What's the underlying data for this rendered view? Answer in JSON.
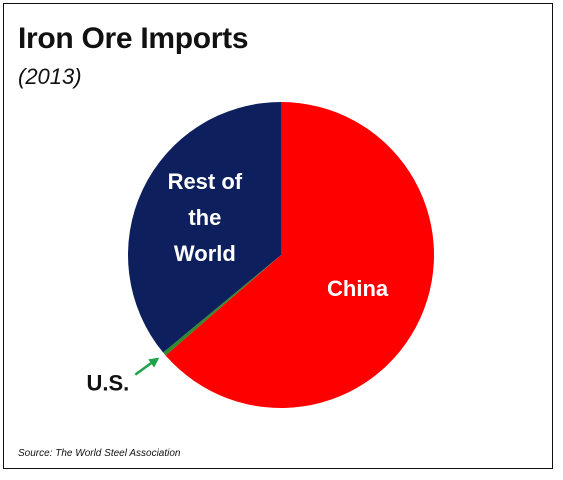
{
  "chart_data": {
    "type": "pie",
    "title": "Iron Ore Imports",
    "subtitle": "(2013)",
    "source": "Source: The World Steel Association",
    "slices": [
      {
        "label": "China",
        "value": 63.6,
        "color": "#ff0000",
        "label_lines": [
          "China"
        ]
      },
      {
        "label": "U.S.",
        "value": 0.4,
        "color": "#2e8b2e",
        "label_lines": [
          "U.S."
        ]
      },
      {
        "label": "Rest of the World",
        "value": 36.0,
        "color": "#0d1f5c",
        "label_lines": [
          "Rest of",
          "the",
          "World"
        ]
      }
    ],
    "callout_arrow_color": "#1fa34a"
  }
}
